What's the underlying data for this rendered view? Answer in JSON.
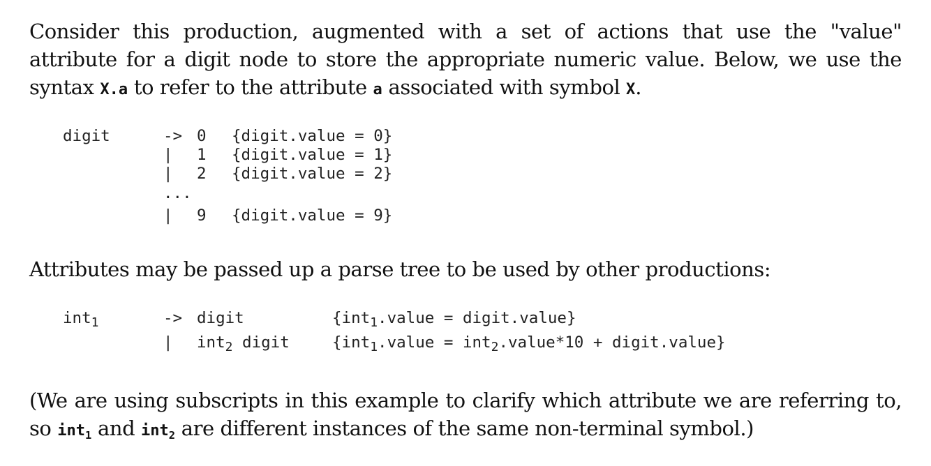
{
  "intro": {
    "part1": "Consider this production, augmented with a set of actions that use the \"value\" attribute for a digit node to store the appropriate numeric value.  Below, we use the syntax ",
    "syntax_x": "X",
    "syntax_dot": ".",
    "syntax_a": "a",
    "part2": " to refer to the attribute ",
    "attr_a": "a",
    "part3": " associated with symbol ",
    "symbol_x": "X",
    "part4": "."
  },
  "grammar1": {
    "lhs": "digit",
    "rules": [
      {
        "op": "->",
        "term": "0",
        "action": "{digit.value = 0}"
      },
      {
        "op": "|",
        "term": "1",
        "action": "{digit.value = 1}"
      },
      {
        "op": "|",
        "term": "2",
        "action": "{digit.value = 2}"
      }
    ],
    "ellipsis": "...",
    "last_rule": {
      "op": "|",
      "term": "9",
      "action": "{digit.value = 9}"
    }
  },
  "middle_text": "Attributes may be passed up a parse tree to be used by other productions:",
  "grammar2": {
    "lhs_base": "int",
    "lhs_sub": "1",
    "rule1": {
      "op": "->",
      "rhs": "digit",
      "action_open": "{int",
      "action_sub": "1",
      "action_rest": ".value = digit.value}"
    },
    "rule2": {
      "op": "|",
      "rhs_base": "int",
      "rhs_sub": "2",
      "rhs_rest": " digit",
      "action_open": "{int",
      "action_sub1": "1",
      "action_mid": ".value = int",
      "action_sub2": "2",
      "action_rest": ".value*10 + digit.value}"
    }
  },
  "closing": {
    "part1": "(We are using subscripts in this example to clarify which attribute we are referring to, so ",
    "int_base_1": "int",
    "int_sub_1": "1",
    "part2": " and ",
    "int_base_2": "int",
    "int_sub_2": "2",
    "part3": " are different instances of the same non-terminal symbol.)"
  }
}
